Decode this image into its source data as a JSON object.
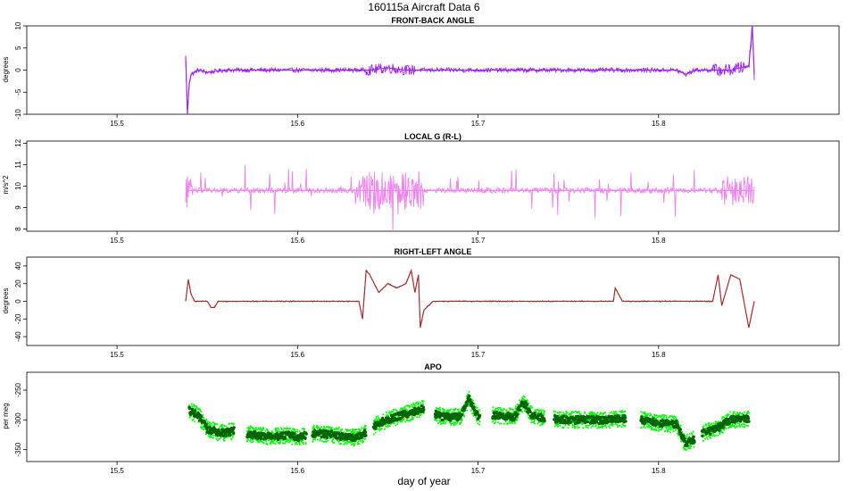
{
  "suptitle": "160115a   Aircraft Data 6",
  "xlabel": "day of year",
  "chart_data": [
    {
      "type": "line",
      "title": "FRONT-BACK ANGLE",
      "ylabel": "degrees",
      "color": "#a020f0",
      "xlim": [
        15.45,
        15.9
      ],
      "ylim": [
        -10,
        10
      ],
      "yticks": [
        10,
        5,
        0,
        -5,
        -10
      ],
      "xticks": [
        "15.5",
        "15.6",
        "15.7",
        "15.8"
      ],
      "x": [
        15.538,
        15.539,
        15.54,
        15.541,
        15.545,
        15.55,
        15.56,
        15.575,
        15.59,
        15.6,
        15.62,
        15.635,
        15.64,
        15.65,
        15.66,
        15.665,
        15.67,
        15.68,
        15.7,
        15.72,
        15.74,
        15.76,
        15.78,
        15.8,
        15.81,
        15.815,
        15.82,
        15.84,
        15.85,
        15.852,
        15.853
      ],
      "y": [
        3,
        -10,
        -3,
        -1,
        0,
        -0.5,
        0,
        0,
        0,
        0,
        0,
        0,
        0,
        0.5,
        0,
        0,
        0,
        0,
        0,
        0,
        0,
        0,
        0,
        0,
        0,
        -1,
        0,
        0,
        1,
        10,
        -1
      ]
    },
    {
      "type": "line",
      "title": "LOCAL G (R-L)",
      "ylabel": "m/s^2",
      "color": "#ee82ee",
      "xlim": [
        15.45,
        15.9
      ],
      "ylim": [
        7.9,
        12.1
      ],
      "yticks": [
        12,
        11,
        10,
        9,
        8
      ],
      "xticks": [
        "15.5",
        "15.6",
        "15.7",
        "15.8"
      ],
      "x": [
        15.538,
        15.54,
        15.55,
        15.57,
        15.6,
        15.62,
        15.635,
        15.645,
        15.655,
        15.665,
        15.675,
        15.7,
        15.72,
        15.74,
        15.76,
        15.78,
        15.8,
        15.82,
        15.84,
        15.853
      ],
      "y": [
        9.8,
        9.8,
        9.8,
        9.8,
        9.8,
        9.8,
        9.8,
        9.8,
        9.8,
        9.8,
        9.8,
        9.8,
        9.8,
        9.8,
        9.8,
        9.8,
        9.8,
        9.8,
        9.8,
        9.8
      ]
    },
    {
      "type": "line",
      "title": "RIGHT-LEFT ANGLE",
      "ylabel": "degrees",
      "color": "#a52a2a",
      "xlim": [
        15.45,
        15.9
      ],
      "ylim": [
        -50,
        50
      ],
      "yticks": [
        40,
        20,
        0,
        -20,
        -40
      ],
      "xticks": [
        "15.5",
        "15.6",
        "15.7",
        "15.8"
      ],
      "x": [
        15.538,
        15.5395,
        15.541,
        15.543,
        15.55,
        15.552,
        15.554,
        15.556,
        15.6,
        15.634,
        15.636,
        15.638,
        15.64,
        15.645,
        15.65,
        15.655,
        15.66,
        15.663,
        15.665,
        15.667,
        15.668,
        15.67,
        15.675,
        15.7,
        15.72,
        15.74,
        15.76,
        15.775,
        15.776,
        15.78,
        15.8,
        15.81,
        15.83,
        15.833,
        15.835,
        15.84,
        15.845,
        15.85,
        15.853
      ],
      "y": [
        0,
        25,
        8,
        0,
        0,
        -7,
        -7,
        0,
        0,
        0,
        -20,
        35,
        30,
        10,
        20,
        15,
        20,
        35,
        10,
        30,
        -30,
        -10,
        0,
        0,
        0,
        0,
        0,
        0,
        15,
        0,
        0,
        0,
        0,
        30,
        -5,
        30,
        25,
        -30,
        0
      ]
    },
    {
      "type": "scatter",
      "title": "APO",
      "ylabel": "per meg",
      "color": "#006400",
      "color_halo": "#00ff00",
      "xlim": [
        15.45,
        15.9
      ],
      "ylim": [
        -370,
        -220
      ],
      "yticks": [
        -250,
        -300,
        -350
      ],
      "xticks": [
        "15.5",
        "15.6",
        "15.7",
        "15.8"
      ],
      "x": [
        15.54,
        15.545,
        15.55,
        15.555,
        15.56,
        15.565,
        15.575,
        15.585,
        15.595,
        15.6,
        15.61,
        15.62,
        15.63,
        15.635,
        15.645,
        15.655,
        15.665,
        15.67,
        15.68,
        15.69,
        15.695,
        15.7,
        15.71,
        15.72,
        15.725,
        15.73,
        15.74,
        15.75,
        15.76,
        15.77,
        15.78,
        15.79,
        15.8,
        15.81,
        15.815,
        15.825,
        15.832,
        15.84,
        15.85
      ],
      "y": [
        -285,
        -292,
        -315,
        -320,
        -322,
        -318,
        -325,
        -328,
        -326,
        -330,
        -322,
        -325,
        -330,
        -328,
        -305,
        -295,
        -285,
        -280,
        -295,
        -295,
        -265,
        -295,
        -292,
        -295,
        -270,
        -293,
        -298,
        -300,
        -300,
        -300,
        -298,
        -300,
        -305,
        -308,
        -340,
        -322,
        -315,
        -300,
        -298
      ]
    }
  ]
}
